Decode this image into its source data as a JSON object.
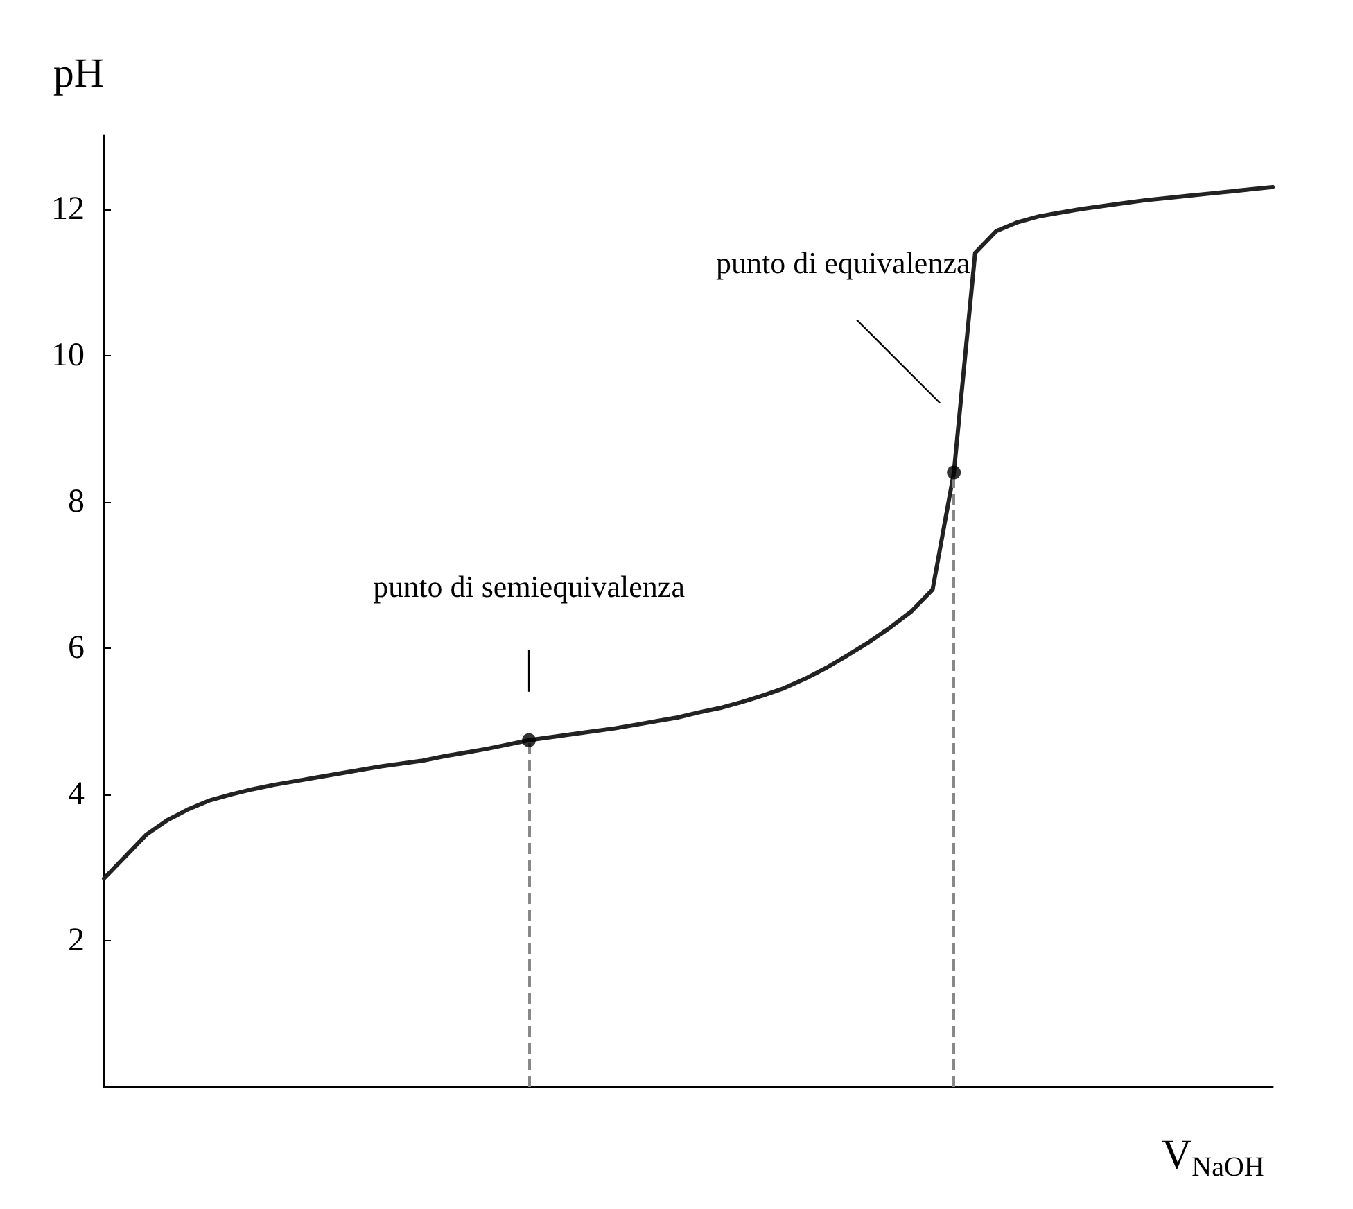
{
  "chart_data": {
    "type": "line",
    "xlabel": "V$_{NaOH}$",
    "ylabel": "pH",
    "categories": [
      null,
      null,
      null,
      null,
      null,
      null,
      null,
      null,
      null,
      null,
      null,
      null,
      null,
      null,
      null,
      null,
      null,
      null,
      null,
      null,
      null,
      null,
      null,
      null,
      null,
      null,
      null,
      null,
      null,
      null,
      null,
      null,
      null,
      null,
      null,
      null,
      null,
      null,
      null,
      null,
      null,
      null,
      null,
      null,
      null,
      null,
      null,
      null,
      null,
      null,
      null,
      null,
      null,
      null,
      null,
      null
    ],
    "series": [
      {
        "color": "#222222",
        "marker": "none",
        "values": [
          2.85,
          3.15,
          3.45,
          3.65,
          3.8,
          3.92,
          4.0,
          4.07,
          4.13,
          4.18,
          4.23,
          4.28,
          4.33,
          4.38,
          4.42,
          4.46,
          4.52,
          4.57,
          4.62,
          4.68,
          4.74,
          4.78,
          4.82,
          4.86,
          4.9,
          4.95,
          5.0,
          5.05,
          5.12,
          5.18,
          5.26,
          5.35,
          5.45,
          5.58,
          5.73,
          5.9,
          6.08,
          6.28,
          6.5,
          6.8,
          8.4,
          11.4,
          11.7,
          11.82,
          11.9,
          11.95,
          12.0,
          12.04,
          12.08,
          12.12,
          12.15,
          12.18,
          12.21,
          12.24,
          12.27,
          12.3
        ]
      },
      {
        "type": "scatter",
        "color": "#000000",
        "marker": "circle",
        "values": [
          null,
          null,
          null,
          null,
          null,
          null,
          null,
          null,
          null,
          null,
          null,
          null,
          null,
          null,
          null,
          null,
          null,
          null,
          null,
          null,
          4.74,
          null,
          null,
          null,
          null,
          null,
          null,
          null,
          null,
          null,
          null,
          null,
          null,
          null,
          null,
          null,
          null,
          null,
          null,
          null,
          8.4,
          null,
          null,
          null,
          null,
          null,
          null,
          null,
          null,
          null,
          null,
          null,
          null,
          null,
          null,
          null
        ]
      }
    ],
    "annotations": [
      "punto di semiequivalenza",
      "punto di equivalenza"
    ],
    "ylim": [
      0,
      13
    ],
    "yticks": [
      2,
      4,
      6,
      8,
      10,
      12
    ],
    "tick_labels": "y",
    "grid": false
  }
}
